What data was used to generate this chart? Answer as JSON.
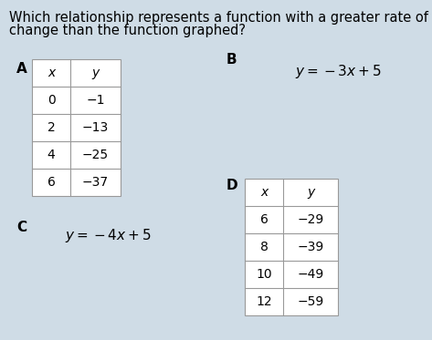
{
  "title_line1": "Which relationship represents a function with a greater rate of",
  "title_line2": "change than the function graphed?",
  "background_color": "#cfdce6",
  "label_A": "A",
  "label_B": "B",
  "label_C": "C",
  "label_D": "D",
  "table_A_headers": [
    "x",
    "y"
  ],
  "table_A_rows": [
    [
      "0",
      "−1"
    ],
    [
      "2",
      "−13"
    ],
    [
      "4",
      "−25"
    ],
    [
      "6",
      "−37"
    ]
  ],
  "equation_B": "$y = -3x + 5$",
  "equation_C": "$y = -4x + 5$",
  "table_D_headers": [
    "x",
    "y"
  ],
  "table_D_rows": [
    [
      "6",
      "−29"
    ],
    [
      "8",
      "−39"
    ],
    [
      "10",
      "−49"
    ],
    [
      "12",
      "−59"
    ]
  ],
  "title_fontsize": 10.5,
  "label_fontsize": 11,
  "table_fontsize": 10,
  "eq_fontsize": 11,
  "table_border_color": "#999999",
  "table_bg": "white"
}
